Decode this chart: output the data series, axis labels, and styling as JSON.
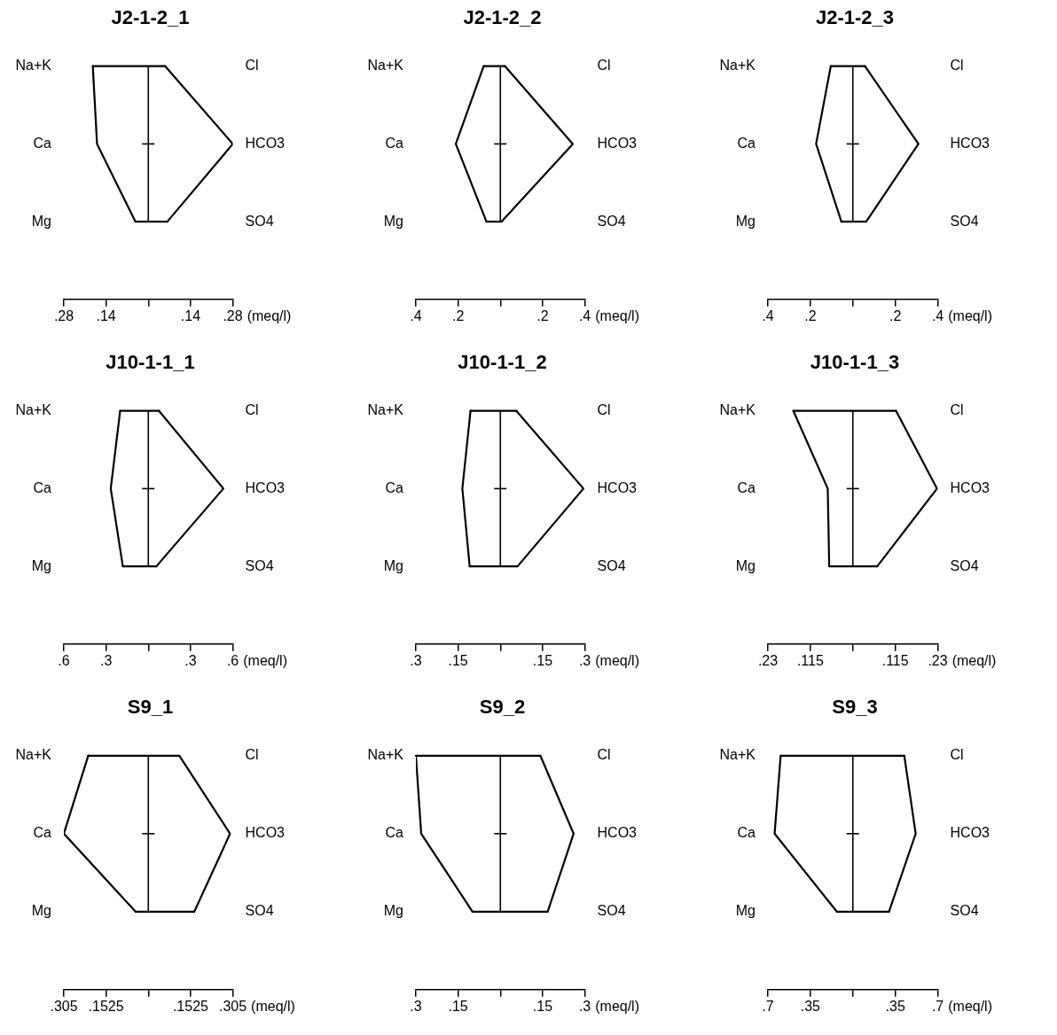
{
  "chart_data": [
    {
      "type": "line",
      "orientation": "horizontal",
      "title": "J2-1-2_1",
      "xlabel": "(meq/l)",
      "marker": "none",
      "categories": [
        "Na+K",
        "Ca",
        "Mg"
      ],
      "y2_categories": [
        "Cl",
        "HCO3",
        "SO4"
      ],
      "xlim": [
        -0.28,
        0.28
      ],
      "xticks": [
        {
          "value": -0.28,
          "label": ".28"
        },
        {
          "value": -0.14,
          "label": ".14"
        },
        {
          "value": 0,
          "label": null
        },
        {
          "value": 0.14,
          "label": ".14"
        },
        {
          "value": 0.28,
          "label": ".28"
        }
      ],
      "ref_lines": [
        {
          "axis": "x",
          "value": 0,
          "color": "#000000"
        }
      ],
      "series": [
        {
          "color": "#000000",
          "values": [
            -0.184,
            -0.17,
            -0.043
          ]
        },
        {
          "color": "#000000",
          "values": [
            0.056,
            0.28,
            0.063
          ]
        }
      ]
    },
    {
      "type": "line",
      "orientation": "horizontal",
      "title": "J2-1-2_2",
      "xlabel": "(meq/l)",
      "marker": "none",
      "categories": [
        "Na+K",
        "Ca",
        "Mg"
      ],
      "y2_categories": [
        "Cl",
        "HCO3",
        "SO4"
      ],
      "xlim": [
        -0.4,
        0.4
      ],
      "xticks": [
        {
          "value": -0.4,
          "label": ".4"
        },
        {
          "value": -0.2,
          "label": ".2"
        },
        {
          "value": 0,
          "label": null
        },
        {
          "value": 0.2,
          "label": ".2"
        },
        {
          "value": 0.4,
          "label": ".4"
        }
      ],
      "ref_lines": [
        {
          "axis": "x",
          "value": 0,
          "color": "#000000"
        }
      ],
      "series": [
        {
          "color": "#000000",
          "values": [
            -0.079,
            -0.211,
            -0.066
          ]
        },
        {
          "color": "#000000",
          "values": [
            0.022,
            0.343,
            0.006
          ]
        }
      ]
    },
    {
      "type": "line",
      "orientation": "horizontal",
      "title": "J2-1-2_3",
      "xlabel": "(meq/l)",
      "marker": "none",
      "categories": [
        "Na+K",
        "Ca",
        "Mg"
      ],
      "y2_categories": [
        "Cl",
        "HCO3",
        "SO4"
      ],
      "xlim": [
        -0.4,
        0.4
      ],
      "xticks": [
        {
          "value": -0.4,
          "label": ".4"
        },
        {
          "value": -0.2,
          "label": ".2"
        },
        {
          "value": 0,
          "label": null
        },
        {
          "value": 0.2,
          "label": ".2"
        },
        {
          "value": 0.4,
          "label": ".4"
        }
      ],
      "ref_lines": [
        {
          "axis": "x",
          "value": 0,
          "color": "#000000"
        }
      ],
      "series": [
        {
          "color": "#000000",
          "values": [
            -0.104,
            -0.173,
            -0.054
          ]
        },
        {
          "color": "#000000",
          "values": [
            0.057,
            0.309,
            0.063
          ]
        }
      ]
    },
    {
      "type": "line",
      "orientation": "horizontal",
      "title": "J10-1-1_1",
      "xlabel": "(meq/l)",
      "marker": "none",
      "categories": [
        "Na+K",
        "Ca",
        "Mg"
      ],
      "y2_categories": [
        "Cl",
        "HCO3",
        "SO4"
      ],
      "xlim": [
        -0.6,
        0.6
      ],
      "xticks": [
        {
          "value": -0.6,
          "label": ".6"
        },
        {
          "value": -0.3,
          "label": ".3"
        },
        {
          "value": 0,
          "label": null
        },
        {
          "value": 0.3,
          "label": ".3"
        },
        {
          "value": 0.6,
          "label": ".6"
        }
      ],
      "ref_lines": [
        {
          "axis": "x",
          "value": 0,
          "color": "#000000"
        }
      ],
      "series": [
        {
          "color": "#000000",
          "values": [
            -0.2,
            -0.267,
            -0.181
          ]
        },
        {
          "color": "#000000",
          "values": [
            0.076,
            0.533,
            0.057
          ]
        }
      ]
    },
    {
      "type": "line",
      "orientation": "horizontal",
      "title": "J10-1-1_2",
      "xlabel": "(meq/l)",
      "marker": "none",
      "categories": [
        "Na+K",
        "Ca",
        "Mg"
      ],
      "y2_categories": [
        "Cl",
        "HCO3",
        "SO4"
      ],
      "xlim": [
        -0.3,
        0.3
      ],
      "xticks": [
        {
          "value": -0.3,
          "label": ".3"
        },
        {
          "value": -0.15,
          "label": ".15"
        },
        {
          "value": 0,
          "label": null
        },
        {
          "value": 0.15,
          "label": ".15"
        },
        {
          "value": 0.3,
          "label": ".3"
        }
      ],
      "ref_lines": [
        {
          "axis": "x",
          "value": 0,
          "color": "#000000"
        }
      ],
      "series": [
        {
          "color": "#000000",
          "values": [
            -0.106,
            -0.135,
            -0.109
          ]
        },
        {
          "color": "#000000",
          "values": [
            0.057,
            0.295,
            0.061
          ]
        }
      ]
    },
    {
      "type": "line",
      "orientation": "horizontal",
      "title": "J10-1-1_3",
      "xlabel": "(meq/l)",
      "marker": "none",
      "categories": [
        "Na+K",
        "Ca",
        "Mg"
      ],
      "y2_categories": [
        "Cl",
        "HCO3",
        "SO4"
      ],
      "xlim": [
        -0.23,
        0.23
      ],
      "xticks": [
        {
          "value": -0.23,
          "label": ".23"
        },
        {
          "value": -0.115,
          "label": ".115"
        },
        {
          "value": 0,
          "label": null
        },
        {
          "value": 0.115,
          "label": ".115"
        },
        {
          "value": 0.23,
          "label": ".23"
        }
      ],
      "ref_lines": [
        {
          "axis": "x",
          "value": 0,
          "color": "#000000"
        }
      ],
      "series": [
        {
          "color": "#000000",
          "values": [
            -0.161,
            -0.068,
            -0.064
          ]
        },
        {
          "color": "#000000",
          "values": [
            0.117,
            0.228,
            0.066
          ]
        }
      ]
    },
    {
      "type": "line",
      "orientation": "horizontal",
      "title": "S9_1",
      "xlabel": "(meq/l)",
      "marker": "none",
      "categories": [
        "Na+K",
        "Ca",
        "Mg"
      ],
      "y2_categories": [
        "Cl",
        "HCO3",
        "SO4"
      ],
      "xlim": [
        -0.305,
        0.305
      ],
      "xticks": [
        {
          "value": -0.305,
          "label": ".305"
        },
        {
          "value": -0.1525,
          "label": ".1525"
        },
        {
          "value": 0,
          "label": null
        },
        {
          "value": 0.1525,
          "label": ".1525"
        },
        {
          "value": 0.305,
          "label": ".305"
        }
      ],
      "ref_lines": [
        {
          "axis": "x",
          "value": 0,
          "color": "#000000"
        }
      ],
      "series": [
        {
          "color": "#000000",
          "values": [
            -0.217,
            -0.305,
            -0.046
          ]
        },
        {
          "color": "#000000",
          "values": [
            0.112,
            0.295,
            0.166
          ]
        }
      ]
    },
    {
      "type": "line",
      "orientation": "horizontal",
      "title": "S9_2",
      "xlabel": "(meq/l)",
      "marker": "none",
      "categories": [
        "Na+K",
        "Ca",
        "Mg"
      ],
      "y2_categories": [
        "Cl",
        "HCO3",
        "SO4"
      ],
      "xlim": [
        -0.3,
        0.3
      ],
      "xticks": [
        {
          "value": -0.3,
          "label": ".3"
        },
        {
          "value": -0.15,
          "label": ".15"
        },
        {
          "value": 0,
          "label": null
        },
        {
          "value": 0.15,
          "label": ".15"
        },
        {
          "value": 0.3,
          "label": ".3"
        }
      ],
      "ref_lines": [
        {
          "axis": "x",
          "value": 0,
          "color": "#000000"
        }
      ],
      "series": [
        {
          "color": "#000000",
          "values": [
            -0.3,
            -0.281,
            -0.099
          ]
        },
        {
          "color": "#000000",
          "values": [
            0.142,
            0.26,
            0.168
          ]
        }
      ]
    },
    {
      "type": "line",
      "orientation": "horizontal",
      "title": "S9_3",
      "xlabel": "(meq/l)",
      "marker": "none",
      "categories": [
        "Na+K",
        "Ca",
        "Mg"
      ],
      "y2_categories": [
        "Cl",
        "HCO3",
        "SO4"
      ],
      "xlim": [
        -0.7,
        0.7
      ],
      "xticks": [
        {
          "value": -0.7,
          "label": ".7"
        },
        {
          "value": -0.35,
          "label": ".35"
        },
        {
          "value": 0,
          "label": null
        },
        {
          "value": 0.35,
          "label": ".35"
        },
        {
          "value": 0.7,
          "label": ".7"
        }
      ],
      "ref_lines": [
        {
          "axis": "x",
          "value": 0,
          "color": "#000000"
        }
      ],
      "series": [
        {
          "color": "#000000",
          "values": [
            -0.595,
            -0.645,
            -0.132
          ]
        },
        {
          "color": "#000000",
          "values": [
            0.424,
            0.518,
            0.298
          ]
        }
      ]
    }
  ]
}
